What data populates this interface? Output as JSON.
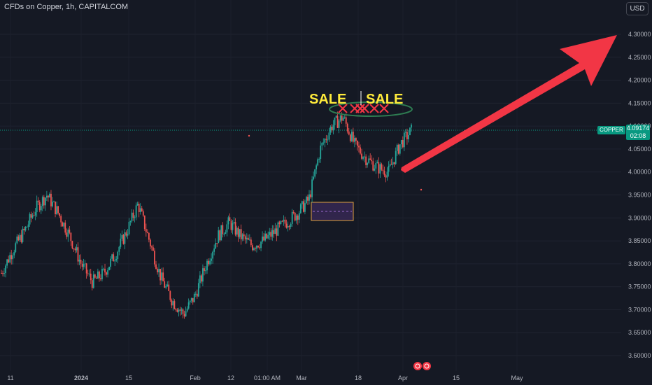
{
  "header": {
    "title": "CFDs on Copper, 1h, CAPITALCOM",
    "currency_button": "USD"
  },
  "price_tag": {
    "symbol": "COPPER",
    "price": "4.09174",
    "countdown": "02:08"
  },
  "colors": {
    "background": "#151924",
    "up": "#26a69a",
    "down": "#ef5350",
    "arrow": "#f23645",
    "annotation_text": "#ffeb3b",
    "box_fill": "#3b2a5a",
    "box_border": "#e0a040"
  },
  "annotations": {
    "sale_labels": [
      "SALE",
      "SALE"
    ],
    "x_marks": 6,
    "arrow": "up-right"
  },
  "icons": [
    "earnings-icon",
    "earnings-icon"
  ],
  "chart_data": {
    "type": "line",
    "title": "CFDs on Copper, 1h, CAPITALCOM",
    "xlabel": "",
    "ylabel": "",
    "ylim": [
      3.57,
      4.34
    ],
    "yticks": [
      3.6,
      3.65,
      3.7,
      3.75,
      3.8,
      3.85,
      3.9,
      3.95,
      4.0,
      4.05,
      4.1,
      4.15,
      4.2,
      4.25,
      4.3
    ],
    "x_tick_labels": [
      "11",
      "2024",
      "15",
      "Feb",
      "12",
      "01:00 AM",
      "Mar",
      "18",
      "Apr",
      "15",
      "May"
    ],
    "grid": true,
    "series": [
      {
        "values": [
          [
            "11",
            3.78
          ],
          [
            "",
            3.83
          ],
          [
            "",
            3.87
          ],
          [
            "2024",
            3.92
          ],
          [
            "",
            3.95
          ],
          [
            "",
            3.91
          ],
          [
            "",
            3.86
          ],
          [
            "15",
            3.8
          ],
          [
            "",
            3.76
          ],
          [
            "",
            3.78
          ],
          [
            "",
            3.82
          ],
          [
            "",
            3.87
          ],
          [
            "Feb",
            3.93
          ],
          [
            "",
            3.85
          ],
          [
            "",
            3.77
          ],
          [
            "",
            3.72
          ],
          [
            "12",
            3.69
          ],
          [
            "",
            3.73
          ],
          [
            "",
            3.8
          ],
          [
            "",
            3.86
          ],
          [
            "",
            3.89
          ],
          [
            "01:00 AM",
            3.86
          ],
          [
            "",
            3.84
          ],
          [
            "",
            3.85
          ],
          [
            "Mar",
            3.87
          ],
          [
            "",
            3.89
          ],
          [
            "",
            3.91
          ],
          [
            "",
            3.94
          ],
          [
            "",
            4.05
          ],
          [
            "18",
            4.1
          ],
          [
            "",
            4.12
          ],
          [
            "",
            4.06
          ],
          [
            "",
            4.03
          ],
          [
            "",
            4.01
          ],
          [
            "Apr",
            4.0
          ],
          [
            "",
            4.06
          ],
          [
            "",
            4.09
          ]
        ]
      }
    ]
  }
}
